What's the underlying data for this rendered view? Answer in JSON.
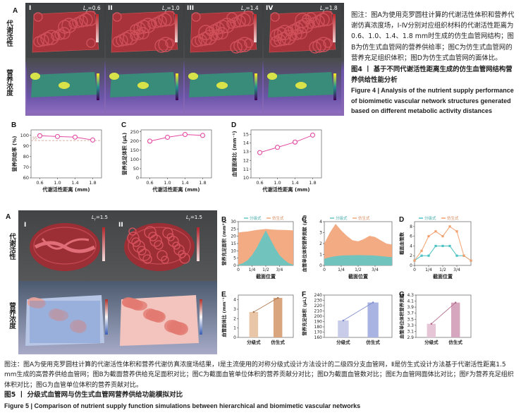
{
  "fig4": {
    "panel_labels": {
      "A": "A",
      "B": "B",
      "C": "C",
      "D": "D"
    },
    "row_labels": [
      "代谢活性",
      "营养浓度"
    ],
    "columns": [
      {
        "roman": "I",
        "lr": "L",
        "lr_sub": "r",
        "lr_val": "=0.6"
      },
      {
        "roman": "II",
        "lr": "L",
        "lr_sub": "r",
        "lr_val": "=1.0"
      },
      {
        "roman": "III",
        "lr": "L",
        "lr_sub": "r",
        "lr_val": "=1.4"
      },
      {
        "roman": "IV",
        "lr": "L",
        "lr_sub": "r",
        "lr_val": "=1.8"
      }
    ],
    "colorbar_ticks": [
      "0.8",
      "0.6",
      "0.4",
      "0.2",
      "0"
    ],
    "caption": {
      "note": "图注：图A为使用克罗圆柱计算的代谢活性体积和营养代谢仿真浓度场，Ⅰ-Ⅳ分别对应组织材料的代谢活性距离为0.6、1.0、1.4、1.8 mm时生成的仿生血管网结构；图B为仿生式血管网的营养供给率；图C为仿生式血管网的营养充足组织体积；图D为仿生式血管网的面体比。",
      "title_cn": "图4 丨 基于不同代谢活性距离生成的仿生血管网结构营养供给性能分析",
      "title_en": "Figure 4  |  Analysis of the nutrient supply performance of biomimetic vascular network structures generated based on different metabolic activity distances"
    }
  },
  "fig5": {
    "panel_labels": {
      "A": "A",
      "B": "B",
      "C": "C",
      "D": "D",
      "E": "E",
      "F": "F",
      "G": "G"
    },
    "row_labels": [
      "代谢活性",
      "营养浓度"
    ],
    "columns": [
      {
        "roman": "I",
        "lr": "L",
        "lr_sub": "r",
        "lr_val": "=1.5"
      },
      {
        "roman": "II",
        "lr": "L",
        "lr_sub": "r",
        "lr_val": "=1.5"
      }
    ],
    "colorbar_ticks_top": [
      "1",
      "0.8",
      "0.6",
      "0.4",
      "0.2",
      "0"
    ],
    "legend": {
      "hier": "分级式",
      "bio": "仿生式"
    },
    "caption": {
      "note": "图注：图A为使用克罗圆柱计算的代谢活性体积和营养代谢仿真浓度场结果，Ⅰ是主流使用的对称分级式设计方法设计的二级四分支血管网，Ⅱ是仿生式设计方法基于代谢活性距离1.5 mm生成的高营养供给血管网；图B为截面营养供给充足面积对比；图C为截面血管单位体积的营养贡献分对比；图D为截面血管数对比；图E为血管网面体比对比；图F为营养充足组织体积对比；图G为血管单位体积的营养贡献对比。",
      "title_cn": "图5 丨 分级式血管网与仿生式血管网营养供给功能模拟对比",
      "title_en": "Figure 5  |  Comparison of nutrient supply function simulations between hierarchical and biomimetic vascular networks"
    }
  },
  "chart_data": [
    {
      "id": "fig4B",
      "type": "line",
      "x": [
        0.6,
        1.0,
        1.4,
        1.8
      ],
      "values": [
        99.5,
        98.8,
        98.2,
        95.5
      ],
      "xlabel": "代谢活性距离 (mm)",
      "ylabel": "营养供给率 (%)",
      "xticks": [
        "0.6",
        "1.0",
        "1.4",
        "1.8"
      ],
      "yticks": [
        "60",
        "70",
        "80",
        "90",
        "100"
      ],
      "ylim": [
        60,
        105
      ],
      "ref_line": {
        "value": 95,
        "label": "95"
      }
    },
    {
      "id": "fig4C",
      "type": "line",
      "x": [
        0.6,
        1.0,
        1.4,
        1.8
      ],
      "values": [
        199,
        220,
        235,
        230
      ],
      "xlabel": "代谢活性距离 (mm)",
      "ylabel": "营养充足体积 (μL)",
      "xticks": [
        "0.6",
        "1.0",
        "1.4",
        "1.8"
      ],
      "yticks": [
        "0",
        "50",
        "100",
        "150",
        "200",
        "250"
      ],
      "ylim": [
        0,
        260
      ]
    },
    {
      "id": "fig4D",
      "type": "line",
      "x": [
        0.6,
        1.0,
        1.4,
        1.8
      ],
      "values": [
        12.9,
        13.5,
        14.1,
        14.9
      ],
      "xlabel": "代谢活性距离 (mm)",
      "ylabel": "血管面体比 (mm⁻¹)",
      "xticks": [
        "0.6",
        "1.0",
        "1.4",
        "1.8"
      ],
      "yticks": [
        "10",
        "11",
        "12",
        "13",
        "14",
        "15"
      ],
      "ylim": [
        10,
        15.5
      ]
    },
    {
      "id": "fig5B",
      "type": "area",
      "x": [
        0,
        0.083,
        0.167,
        0.25,
        0.333,
        0.417,
        0.5,
        0.583,
        0.667,
        0.75,
        0.833,
        0.917,
        1
      ],
      "series": [
        {
          "name": "仿生式",
          "values": [
            22.5,
            23,
            23.2,
            23.8,
            24.3,
            24.6,
            25,
            24.7,
            24.5,
            24.4,
            24.3,
            24.2,
            24
          ]
        },
        {
          "name": "分级式",
          "values": [
            0.5,
            1.5,
            3.5,
            7,
            12,
            18,
            24,
            18,
            12,
            7,
            4,
            1.5,
            0.5
          ]
        }
      ],
      "xlabel": "截面位置",
      "ylabel": "营养充足面积 (mm²)",
      "xticks": [
        "0",
        "1/4",
        "1/2",
        "3/4"
      ],
      "yticks": [
        "0",
        "5",
        "10",
        "15",
        "20",
        "25",
        "30"
      ],
      "ylim": [
        0,
        30
      ]
    },
    {
      "id": "fig5C",
      "type": "area",
      "x": [
        0,
        0.083,
        0.167,
        0.25,
        0.333,
        0.417,
        0.5,
        0.583,
        0.667,
        0.75,
        0.833,
        0.917,
        1
      ],
      "series": [
        {
          "name": "仿生式",
          "values": [
            2,
            3,
            3.8,
            3.2,
            2.7,
            2.3,
            2.2,
            2.4,
            2.7,
            2.6,
            2.3,
            2.0,
            1.9
          ]
        },
        {
          "name": "分级式",
          "values": [
            0.6,
            0.75,
            0.85,
            0.9,
            0.92,
            0.93,
            0.94,
            0.93,
            0.92,
            0.9,
            0.85,
            0.8,
            0.75
          ]
        }
      ],
      "xlabel": "截面位置",
      "ylabel": "血管单位体积营养贡献 (μL)",
      "xticks": [
        "0",
        "1/4",
        "1/2",
        "3/4"
      ],
      "yticks": [
        "0",
        "1",
        "2",
        "3",
        "4"
      ],
      "ylim": [
        0,
        4
      ]
    },
    {
      "id": "fig5D",
      "type": "line",
      "x": [
        0,
        0.125,
        0.25,
        0.375,
        0.5,
        0.625,
        0.75,
        0.875,
        1
      ],
      "series": [
        {
          "name": "分级式",
          "values": [
            1,
            2,
            2,
            4,
            4,
            4,
            2,
            2,
            1
          ]
        },
        {
          "name": "仿生式",
          "values": [
            1,
            3,
            6,
            7,
            6,
            8,
            7,
            2,
            1
          ]
        }
      ],
      "xlabel": "截面位置",
      "ylabel": "截面血管数",
      "xticks": [
        "0",
        "1/4",
        "1/2",
        "3/4"
      ],
      "yticks": [
        "0",
        "2",
        "4",
        "6",
        "8"
      ],
      "ylim": [
        0,
        9
      ]
    },
    {
      "id": "fig5E",
      "type": "bar",
      "categories": [
        "分级式",
        "仿生式"
      ],
      "values": [
        2.7,
        4.2
      ],
      "ylabel": "血管面体比 (mm⁻¹)",
      "yticks": [
        "0",
        "1",
        "2",
        "3",
        "4"
      ],
      "ylim": [
        0,
        4.5
      ]
    },
    {
      "id": "fig5F",
      "type": "bar",
      "categories": [
        "分级式",
        "仿生式"
      ],
      "values": [
        192,
        226
      ],
      "ylabel": "营养充足体积 (μL)",
      "yticks": [
        "160",
        "170",
        "180",
        "190",
        "200",
        "210",
        "220",
        "230",
        "240"
      ],
      "ylim": [
        160,
        240
      ]
    },
    {
      "id": "fig5G",
      "type": "bar",
      "categories": [
        "分级式",
        "仿生式"
      ],
      "values": [
        3.35,
        4.05
      ],
      "ylabel": "血管单位体积营养贡献",
      "yticks": [
        "2.9",
        "3.1",
        "3.3",
        "3.5",
        "3.7",
        "3.9",
        "4.1",
        "4.3"
      ],
      "ylim": [
        2.9,
        4.3
      ]
    }
  ]
}
